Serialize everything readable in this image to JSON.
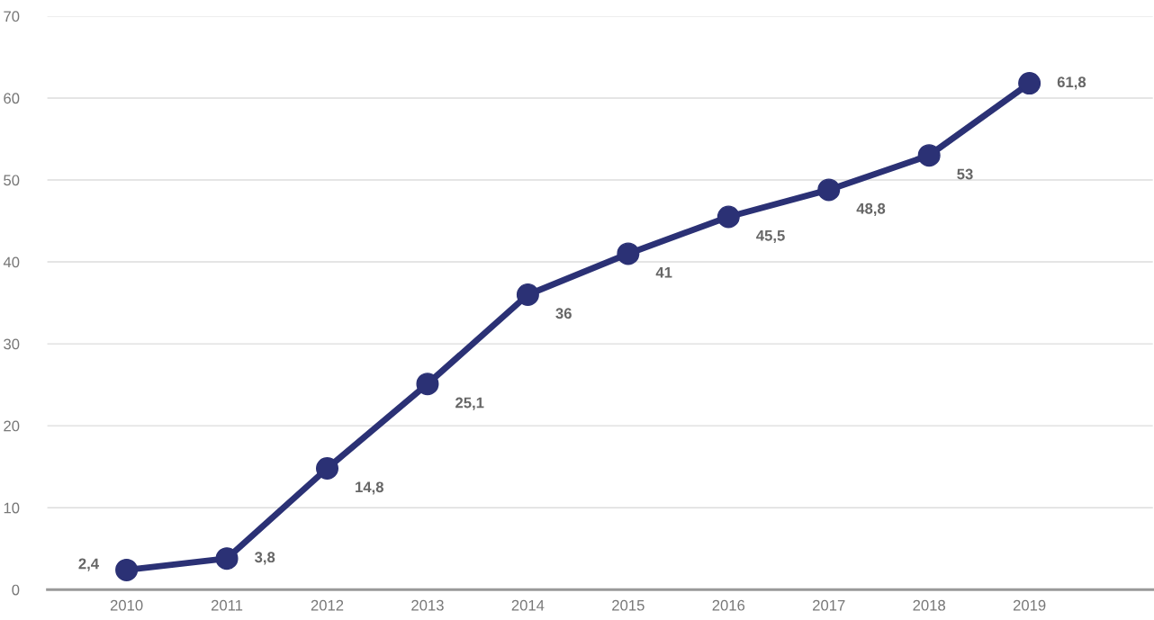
{
  "chart_data": {
    "type": "line",
    "categories": [
      "2010",
      "2011",
      "2012",
      "2013",
      "2014",
      "2015",
      "2016",
      "2017",
      "2018",
      "2019"
    ],
    "series": [
      {
        "color": "#2b3175",
        "values": [
          2.4,
          3.8,
          14.8,
          25.1,
          36,
          41,
          45.5,
          48.8,
          53,
          61.8
        ],
        "value_labels": [
          "2,4",
          "3,8",
          "14,8",
          "25,1",
          "36",
          "41",
          "45,5",
          "48,8",
          "53",
          "61,8"
        ]
      }
    ],
    "ylim": [
      0,
      70
    ],
    "yticks": [
      0,
      10,
      20,
      30,
      40,
      50,
      60,
      70
    ],
    "grid": "y",
    "marker": "circle",
    "line_style": "solid",
    "legend": false
  }
}
